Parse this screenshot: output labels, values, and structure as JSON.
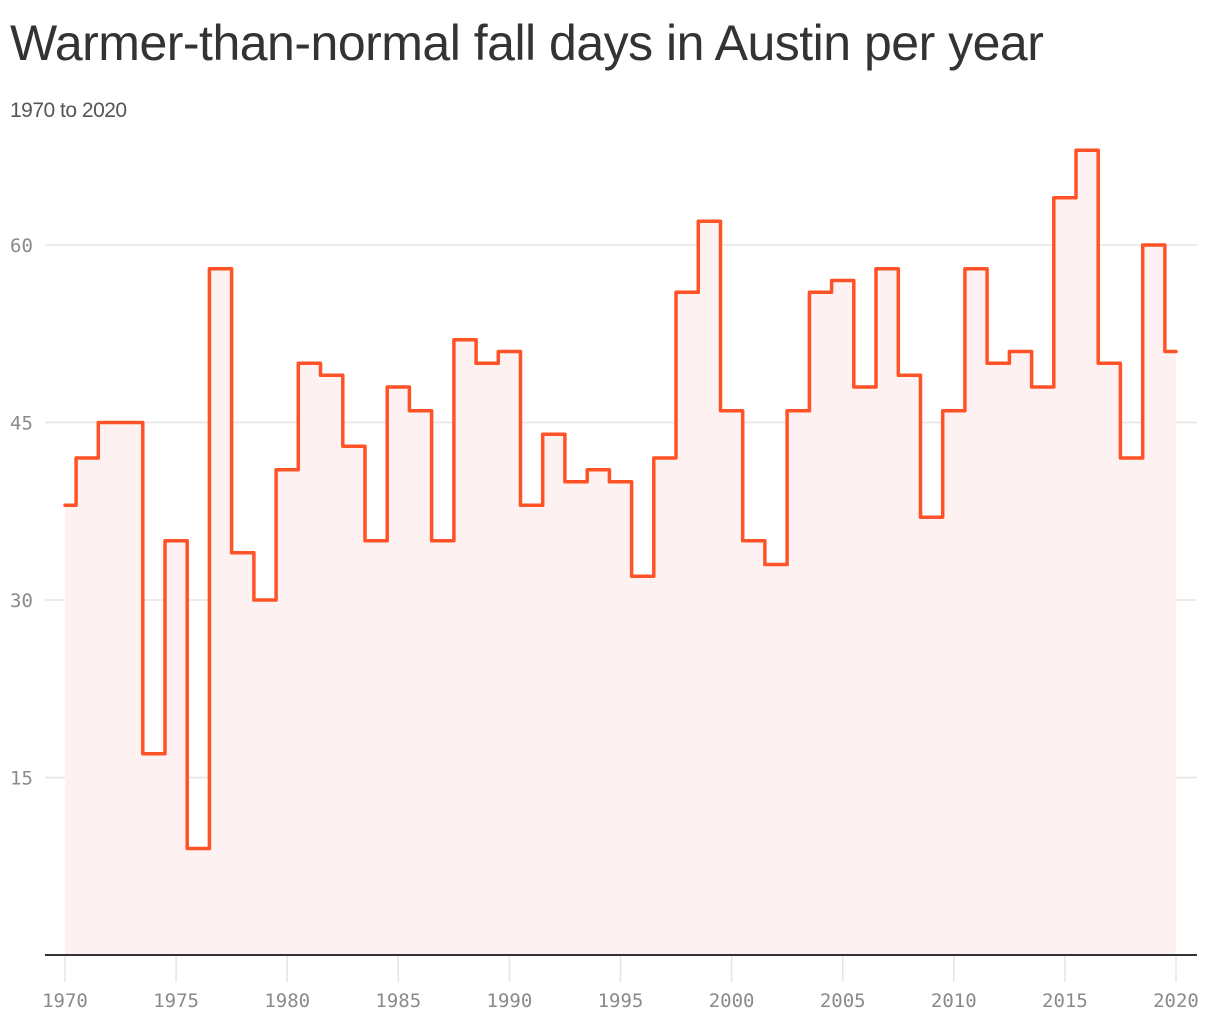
{
  "header": {
    "title": "Warmer-than-normal fall days in Austin per year",
    "subtitle": "1970 to 2020"
  },
  "colors": {
    "line": "#ff5226",
    "fill": "#fdf1f1",
    "grid": "#e5e5e5",
    "axis": "#333333",
    "tick_text": "#8a8a8a",
    "title": "#333333"
  },
  "chart_data": {
    "type": "line",
    "style": "step",
    "title": "Warmer-than-normal fall days in Austin per year",
    "subtitle": "1970 to 2020",
    "xlabel": "",
    "ylabel": "",
    "xlim": [
      1970,
      2020
    ],
    "ylim": [
      0,
      68
    ],
    "x_ticks": [
      1970,
      1975,
      1980,
      1985,
      1990,
      1995,
      2000,
      2005,
      2010,
      2015,
      2020
    ],
    "y_ticks": [
      15,
      30,
      45,
      60
    ],
    "grid": true,
    "legend": null,
    "x": [
      1970,
      1971,
      1972,
      1973,
      1974,
      1975,
      1976,
      1977,
      1978,
      1979,
      1980,
      1981,
      1982,
      1983,
      1984,
      1985,
      1986,
      1987,
      1988,
      1989,
      1990,
      1991,
      1992,
      1993,
      1994,
      1995,
      1996,
      1997,
      1998,
      1999,
      2000,
      2001,
      2002,
      2003,
      2004,
      2005,
      2006,
      2007,
      2008,
      2009,
      2010,
      2011,
      2012,
      2013,
      2014,
      2015,
      2016,
      2017,
      2018,
      2019,
      2020
    ],
    "series": [
      {
        "name": "Warmer-than-normal fall days",
        "values": [
          38,
          42,
          45,
          45,
          17,
          35,
          9,
          58,
          34,
          30,
          41,
          50,
          49,
          43,
          35,
          48,
          46,
          35,
          52,
          50,
          51,
          38,
          44,
          40,
          41,
          40,
          32,
          42,
          56,
          62,
          46,
          35,
          33,
          46,
          56,
          57,
          48,
          58,
          49,
          37,
          46,
          58,
          50,
          51,
          48,
          64,
          68,
          50,
          42,
          60,
          51
        ]
      }
    ]
  }
}
